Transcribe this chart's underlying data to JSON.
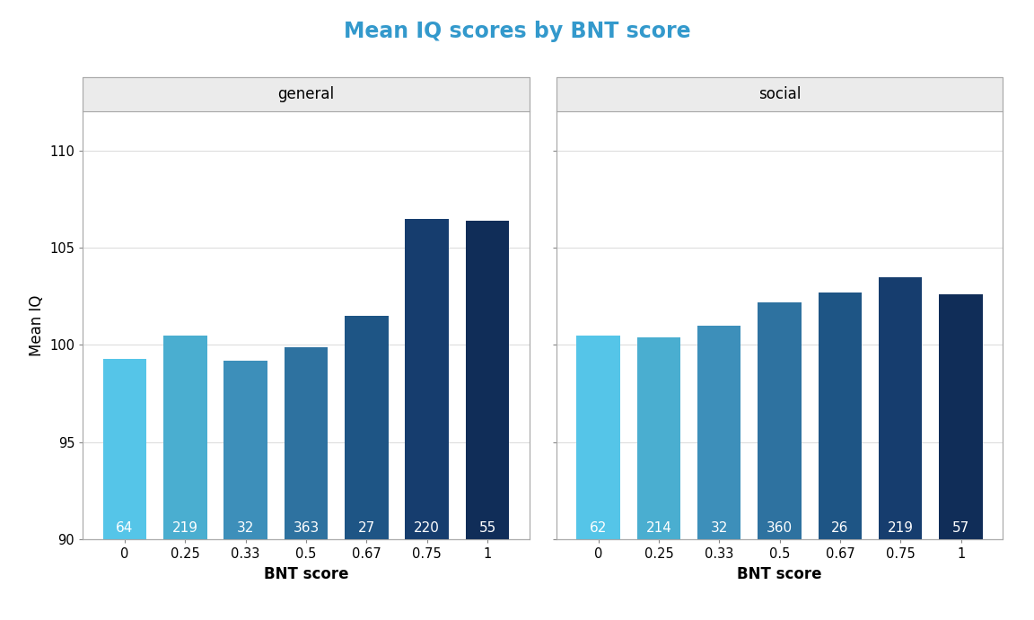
{
  "title": "Mean IQ scores by BNT score",
  "title_color": "#3399cc",
  "xlabel": "BNT score",
  "ylabel": "Mean IQ",
  "ylim": [
    90,
    112
  ],
  "yticks": [
    90,
    95,
    100,
    105,
    110
  ],
  "panels": [
    "general",
    "social"
  ],
  "categories": [
    "0",
    "0.25",
    "0.33",
    "0.5",
    "0.67",
    "0.75",
    "1"
  ],
  "bar_colors": [
    "#55c5e8",
    "#4aaed0",
    "#3d8fba",
    "#2e72a0",
    "#1e5585",
    "#163d6e",
    "#102d58"
  ],
  "general_values": [
    99.3,
    100.5,
    99.2,
    99.9,
    101.5,
    106.5,
    106.4
  ],
  "general_counts": [
    64,
    219,
    32,
    363,
    27,
    220,
    55
  ],
  "social_values": [
    100.5,
    100.4,
    101.0,
    102.2,
    102.7,
    103.5,
    102.6
  ],
  "social_counts": [
    62,
    214,
    32,
    360,
    26,
    219,
    57
  ],
  "background_color": "#ffffff",
  "panel_bg_color": "#ffffff",
  "panel_header_bg": "#ebebeb",
  "panel_border_color": "#aaaaaa",
  "grid_color": "#dddddd",
  "bar_width": 0.72,
  "label_fontsize": 11,
  "title_fontsize": 17,
  "axis_label_fontsize": 12,
  "tick_fontsize": 10.5,
  "panel_label_fontsize": 12
}
